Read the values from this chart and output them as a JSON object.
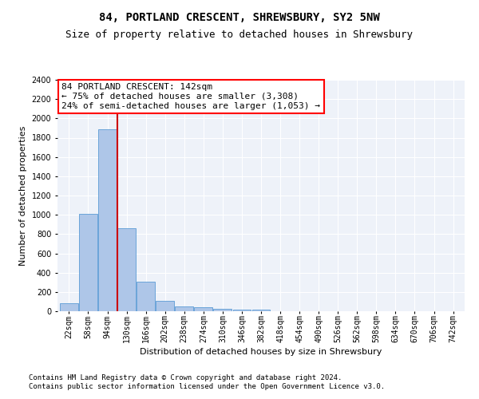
{
  "title": "84, PORTLAND CRESCENT, SHREWSBURY, SY2 5NW",
  "subtitle": "Size of property relative to detached houses in Shrewsbury",
  "xlabel": "Distribution of detached houses by size in Shrewsbury",
  "ylabel": "Number of detached properties",
  "bar_values": [
    80,
    1010,
    1890,
    860,
    310,
    110,
    50,
    40,
    25,
    20,
    15,
    0,
    0,
    0,
    0,
    0,
    0,
    0,
    0,
    0
  ],
  "bin_labels": [
    "22sqm",
    "58sqm",
    "94sqm",
    "130sqm",
    "166sqm",
    "202sqm",
    "238sqm",
    "274sqm",
    "310sqm",
    "346sqm",
    "382sqm",
    "418sqm",
    "454sqm",
    "490sqm",
    "526sqm",
    "562sqm",
    "598sqm",
    "634sqm",
    "670sqm",
    "706sqm",
    "742sqm"
  ],
  "bar_color": "#aec6e8",
  "bar_edge_color": "#5b9bd5",
  "annotation_line1": "84 PORTLAND CRESCENT: 142sqm",
  "annotation_line2": "← 75% of detached houses are smaller (3,308)",
  "annotation_line3": "24% of semi-detached houses are larger (1,053) →",
  "vline_color": "#cc0000",
  "ylim": [
    0,
    2400
  ],
  "yticks": [
    0,
    200,
    400,
    600,
    800,
    1000,
    1200,
    1400,
    1600,
    1800,
    2000,
    2200,
    2400
  ],
  "footer_line1": "Contains HM Land Registry data © Crown copyright and database right 2024.",
  "footer_line2": "Contains public sector information licensed under the Open Government Licence v3.0.",
  "bg_color": "#eef2f9",
  "grid_color": "#ffffff",
  "title_fontsize": 10,
  "subtitle_fontsize": 9,
  "axis_label_fontsize": 8,
  "tick_fontsize": 7,
  "annotation_fontsize": 8,
  "footer_fontsize": 6.5
}
